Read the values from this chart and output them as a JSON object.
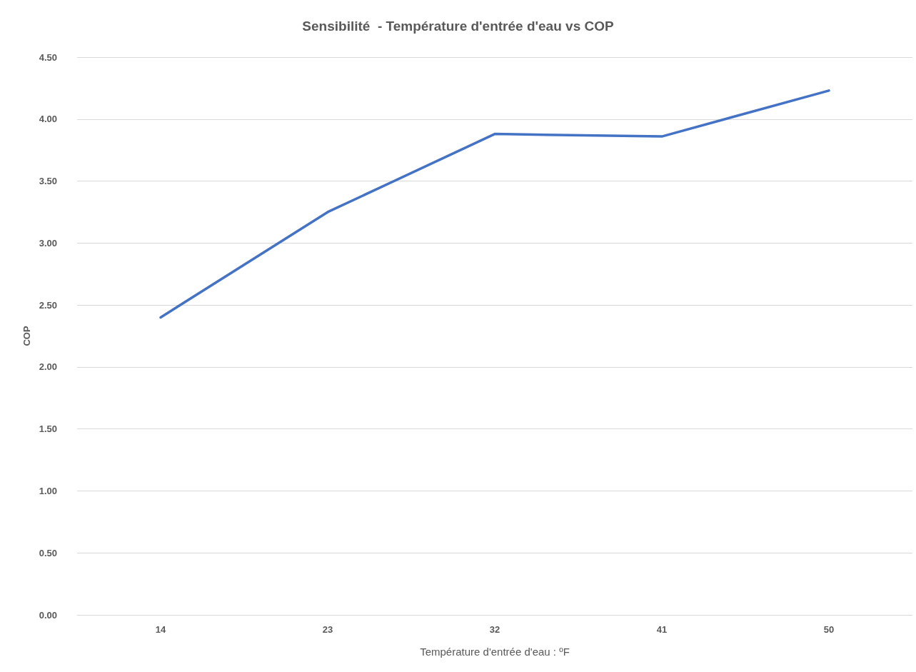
{
  "chart_data": {
    "type": "line",
    "title": "Sensibilité  - Température d'entrée d'eau vs COP",
    "xlabel": "Température d'entrée d'eau : ºF",
    "ylabel": "COP",
    "categories": [
      "14",
      "23",
      "32",
      "41",
      "50"
    ],
    "series": [
      {
        "color": "#4472c4",
        "values": [
          2.4,
          3.25,
          3.88,
          3.86,
          4.23
        ]
      }
    ],
    "ylim": [
      0,
      4.5
    ],
    "yticks": [
      {
        "value": 0,
        "label": "0.00"
      },
      {
        "value": 0.5,
        "label": "0.50"
      },
      {
        "value": 1,
        "label": "1.00"
      },
      {
        "value": 1.5,
        "label": "1.50"
      },
      {
        "value": 2,
        "label": "2.00"
      },
      {
        "value": 2.5,
        "label": "2.50"
      },
      {
        "value": 3,
        "label": "3.00"
      },
      {
        "value": 3.5,
        "label": "3.50"
      },
      {
        "value": 4,
        "label": "4.00"
      },
      {
        "value": 4.5,
        "label": "4.50"
      }
    ],
    "grid": "y",
    "marker": "none",
    "line_style": "solid"
  }
}
